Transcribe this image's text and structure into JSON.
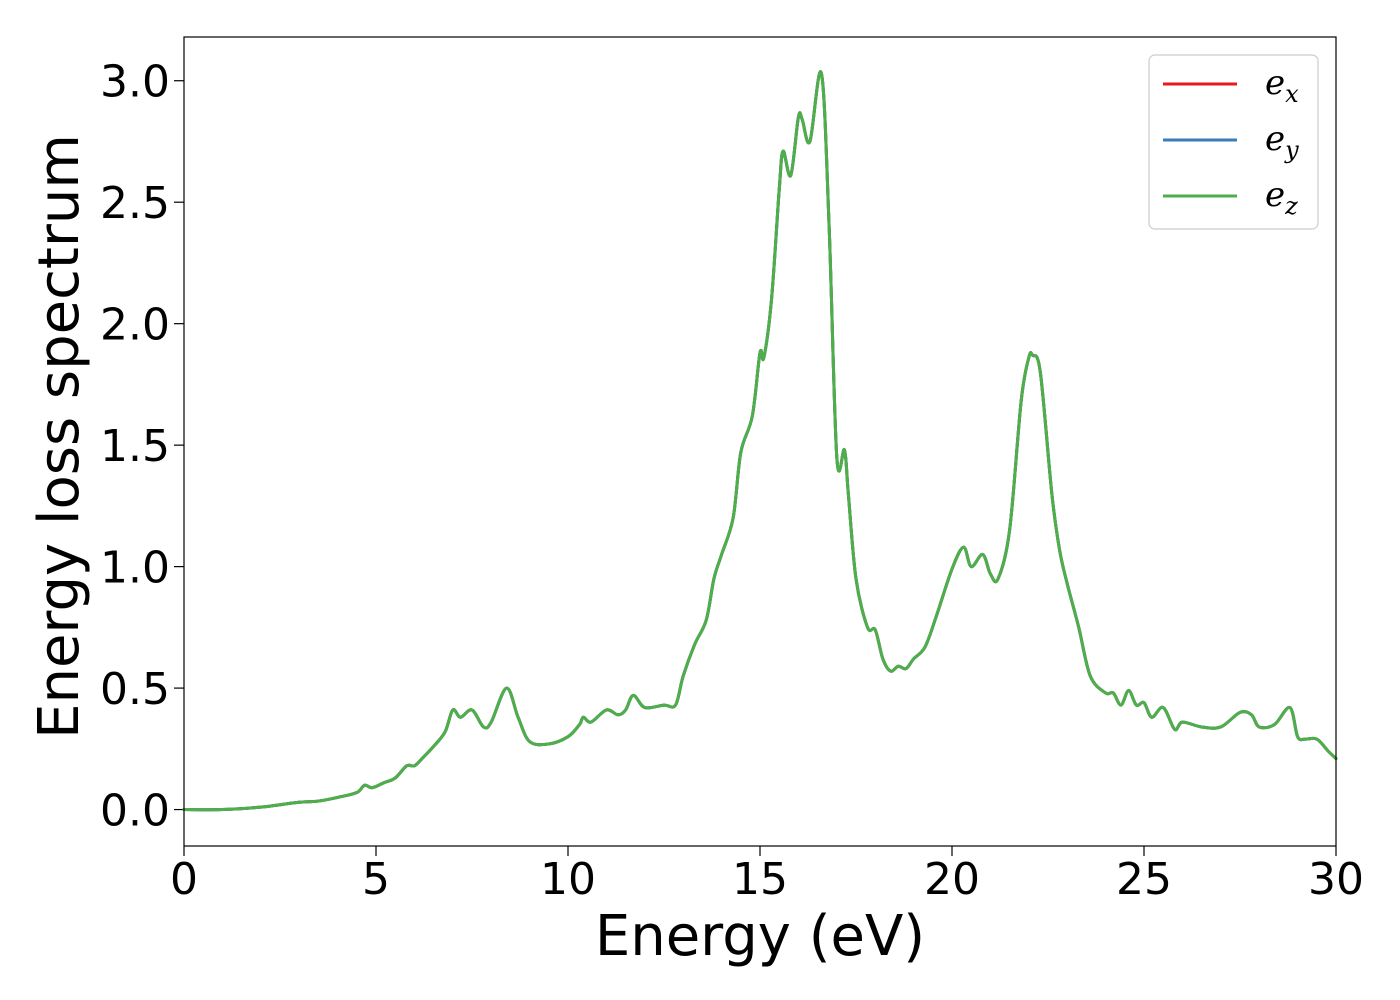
{
  "chart_data": {
    "type": "line",
    "title": "",
    "xlabel": "Energy (eV)",
    "ylabel": "Energy loss spectrum",
    "xlim": [
      0,
      30
    ],
    "ylim": [
      -0.15,
      3.18
    ],
    "xticks": [
      0,
      5,
      10,
      15,
      20,
      25,
      30
    ],
    "xtick_labels": [
      "0",
      "5",
      "10",
      "15",
      "20",
      "25",
      "30"
    ],
    "yticks": [
      0.0,
      0.5,
      1.0,
      1.5,
      2.0,
      2.5,
      3.0
    ],
    "ytick_labels": [
      "0.0",
      "0.5",
      "1.0",
      "1.5",
      "2.0",
      "2.5",
      "3.0"
    ],
    "grid": false,
    "legend_position": "top-right",
    "x": [
      0,
      1,
      2,
      2.5,
      3,
      3.5,
      4,
      4.5,
      4.7,
      4.9,
      5.2,
      5.5,
      5.8,
      6.0,
      6.2,
      6.5,
      6.8,
      7.0,
      7.2,
      7.5,
      7.8,
      8.0,
      8.4,
      8.7,
      9.0,
      9.5,
      10.0,
      10.3,
      10.4,
      10.6,
      11.0,
      11.3,
      11.5,
      11.7,
      12.0,
      12.5,
      12.8,
      13.0,
      13.3,
      13.6,
      13.8,
      14.0,
      14.3,
      14.5,
      14.8,
      15.0,
      15.1,
      15.3,
      15.5,
      15.6,
      15.8,
      16.0,
      16.1,
      16.3,
      16.6,
      16.8,
      17.0,
      17.2,
      17.3,
      17.5,
      17.8,
      18.0,
      18.2,
      18.4,
      18.6,
      18.8,
      19.0,
      19.3,
      19.6,
      20.0,
      20.3,
      20.5,
      20.8,
      21.0,
      21.2,
      21.5,
      21.8,
      22.0,
      22.1,
      22.3,
      22.6,
      22.8,
      23.0,
      23.3,
      23.6,
      24.0,
      24.2,
      24.4,
      24.6,
      24.8,
      25.0,
      25.2,
      25.5,
      25.8,
      26.0,
      26.5,
      27.0,
      27.5,
      27.8,
      28.0,
      28.4,
      28.8,
      29.0,
      29.2,
      29.5,
      29.8,
      30.0
    ],
    "series": [
      {
        "name": "e_x",
        "label_base": "e",
        "label_sub": "x",
        "color": "#e41a1c",
        "values": [
          0.0,
          0.0,
          0.01,
          0.02,
          0.03,
          0.035,
          0.05,
          0.07,
          0.1,
          0.09,
          0.11,
          0.13,
          0.18,
          0.18,
          0.21,
          0.26,
          0.32,
          0.41,
          0.38,
          0.41,
          0.34,
          0.36,
          0.5,
          0.38,
          0.28,
          0.27,
          0.3,
          0.35,
          0.38,
          0.36,
          0.41,
          0.39,
          0.41,
          0.47,
          0.42,
          0.43,
          0.43,
          0.55,
          0.68,
          0.78,
          0.95,
          1.05,
          1.2,
          1.47,
          1.62,
          1.88,
          1.86,
          2.1,
          2.55,
          2.71,
          2.61,
          2.85,
          2.84,
          2.75,
          3.03,
          2.4,
          1.45,
          1.48,
          1.3,
          0.95,
          0.75,
          0.74,
          0.62,
          0.57,
          0.59,
          0.58,
          0.62,
          0.67,
          0.8,
          0.99,
          1.08,
          1.0,
          1.05,
          0.97,
          0.95,
          1.15,
          1.68,
          1.86,
          1.87,
          1.8,
          1.3,
          1.07,
          0.93,
          0.75,
          0.55,
          0.48,
          0.48,
          0.43,
          0.49,
          0.43,
          0.44,
          0.38,
          0.42,
          0.33,
          0.36,
          0.34,
          0.34,
          0.4,
          0.39,
          0.34,
          0.35,
          0.42,
          0.3,
          0.29,
          0.29,
          0.24,
          0.21
        ]
      },
      {
        "name": "e_y",
        "label_base": "e",
        "label_sub": "y",
        "color": "#377eb8",
        "values": [
          0.0,
          0.0,
          0.01,
          0.02,
          0.03,
          0.035,
          0.05,
          0.07,
          0.1,
          0.09,
          0.11,
          0.13,
          0.18,
          0.18,
          0.21,
          0.26,
          0.32,
          0.41,
          0.38,
          0.41,
          0.34,
          0.36,
          0.5,
          0.38,
          0.28,
          0.27,
          0.3,
          0.35,
          0.38,
          0.36,
          0.41,
          0.39,
          0.41,
          0.47,
          0.42,
          0.43,
          0.43,
          0.55,
          0.68,
          0.78,
          0.95,
          1.05,
          1.2,
          1.47,
          1.62,
          1.88,
          1.86,
          2.1,
          2.55,
          2.71,
          2.61,
          2.85,
          2.84,
          2.75,
          3.03,
          2.4,
          1.45,
          1.48,
          1.3,
          0.95,
          0.75,
          0.74,
          0.62,
          0.57,
          0.59,
          0.58,
          0.62,
          0.67,
          0.8,
          0.99,
          1.08,
          1.0,
          1.05,
          0.97,
          0.95,
          1.15,
          1.68,
          1.86,
          1.87,
          1.8,
          1.3,
          1.07,
          0.93,
          0.75,
          0.55,
          0.48,
          0.48,
          0.43,
          0.49,
          0.43,
          0.44,
          0.38,
          0.42,
          0.33,
          0.36,
          0.34,
          0.34,
          0.4,
          0.39,
          0.34,
          0.35,
          0.42,
          0.3,
          0.29,
          0.29,
          0.24,
          0.21
        ]
      },
      {
        "name": "e_z",
        "label_base": "e",
        "label_sub": "z",
        "color": "#4daf4a",
        "values": [
          0.0,
          0.0,
          0.01,
          0.02,
          0.03,
          0.035,
          0.05,
          0.07,
          0.1,
          0.09,
          0.11,
          0.13,
          0.18,
          0.18,
          0.21,
          0.26,
          0.32,
          0.41,
          0.38,
          0.41,
          0.34,
          0.36,
          0.5,
          0.38,
          0.28,
          0.27,
          0.3,
          0.35,
          0.38,
          0.36,
          0.41,
          0.39,
          0.41,
          0.47,
          0.42,
          0.43,
          0.43,
          0.55,
          0.68,
          0.78,
          0.95,
          1.05,
          1.2,
          1.47,
          1.62,
          1.88,
          1.86,
          2.1,
          2.55,
          2.71,
          2.61,
          2.85,
          2.84,
          2.75,
          3.03,
          2.4,
          1.45,
          1.48,
          1.3,
          0.95,
          0.75,
          0.74,
          0.62,
          0.57,
          0.59,
          0.58,
          0.62,
          0.67,
          0.8,
          0.99,
          1.08,
          1.0,
          1.05,
          0.97,
          0.95,
          1.15,
          1.68,
          1.86,
          1.87,
          1.8,
          1.3,
          1.07,
          0.93,
          0.75,
          0.55,
          0.48,
          0.48,
          0.43,
          0.49,
          0.43,
          0.44,
          0.38,
          0.42,
          0.33,
          0.36,
          0.34,
          0.34,
          0.4,
          0.39,
          0.34,
          0.35,
          0.42,
          0.3,
          0.29,
          0.29,
          0.24,
          0.21
        ]
      }
    ]
  }
}
